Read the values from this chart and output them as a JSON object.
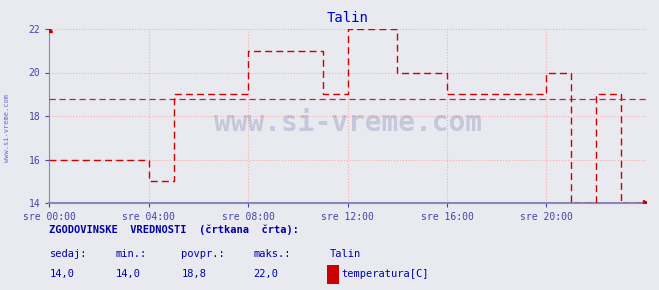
{
  "title": "Talin",
  "title_color": "#0000cc",
  "bg_color": "#e8eaf0",
  "plot_bg_color": "#e8eaf0",
  "line_color": "#cc0000",
  "avg_line_color": "#cc2222",
  "axis_color": "#4444aa",
  "grid_color": "#ffaaaa",
  "grid_style": ":",
  "ylim": [
    14,
    22
  ],
  "yticks": [
    14,
    16,
    18,
    20,
    22
  ],
  "xtick_labels": [
    "sre 00:00",
    "sre 04:00",
    "sre 08:00",
    "sre 12:00",
    "sre 16:00",
    "sre 20:00"
  ],
  "xtick_positions": [
    0,
    240,
    480,
    720,
    960,
    1200
  ],
  "total_minutes": 1440,
  "watermark": "www.si-vreme.com",
  "watermark_color": "#000066",
  "watermark_alpha": 0.15,
  "sidebar_text": "www.si-vreme.com",
  "sidebar_color": "#0000aa",
  "footer_label1": "ZGODOVINSKE  VREDNOSTI  (črtkana  črta):",
  "footer_label2_col1": " sedaj:",
  "footer_label2_col2": "  min.:",
  "footer_label2_col3": "  povpr.:",
  "footer_label2_col4": "  maks.:",
  "footer_label2_col5": "   Talin",
  "footer_val1": " 14,0",
  "footer_val2": "  14,0",
  "footer_val3": "   18,8",
  "footer_val4": "    22,0",
  "footer_legend_label": "temperatura[C]",
  "legend_color": "#cc0000",
  "avg_value": 18.8,
  "data_x": [
    0,
    240,
    240,
    300,
    300,
    480,
    480,
    660,
    660,
    720,
    720,
    840,
    840,
    960,
    960,
    1200,
    1200,
    1260,
    1260,
    1320,
    1320,
    1380,
    1380,
    1440
  ],
  "data_y": [
    16,
    16,
    15,
    15,
    19,
    19,
    21,
    21,
    19,
    19,
    22,
    22,
    20,
    20,
    19,
    19,
    20,
    20,
    14,
    14,
    19,
    19,
    14,
    14
  ],
  "spine_bottom_color": "#8888bb",
  "spine_left_color": "#8888bb"
}
